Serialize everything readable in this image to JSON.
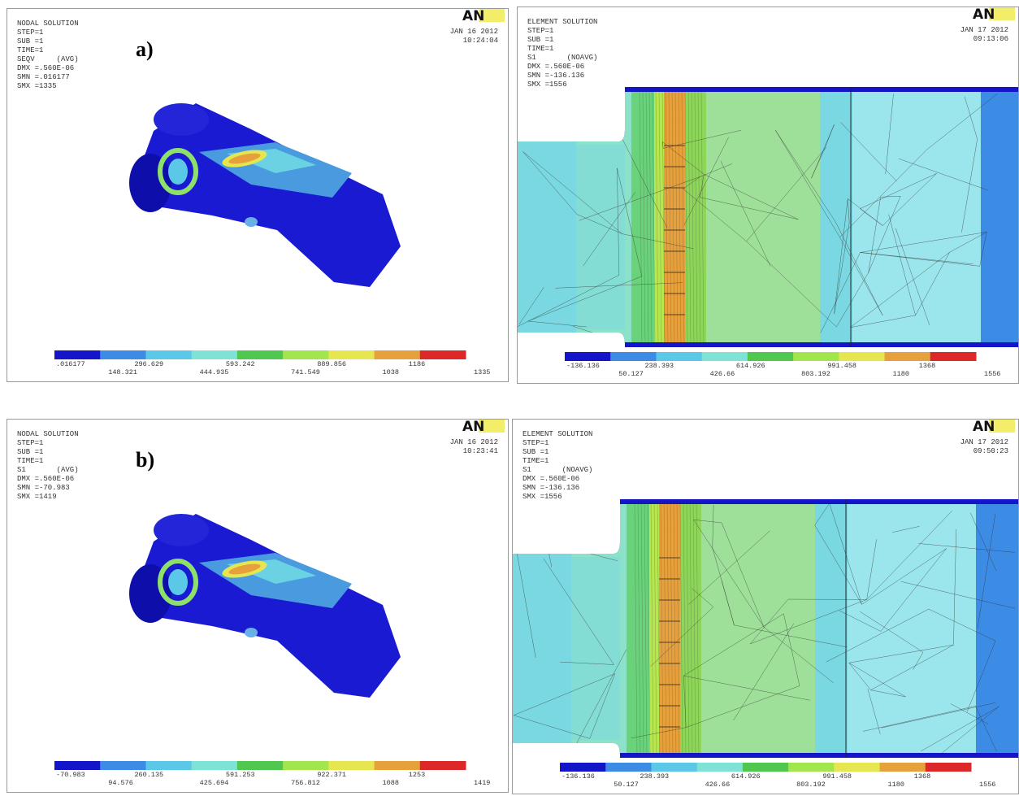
{
  "panels": [
    {
      "header": [
        "NODAL SOLUTION",
        "STEP=1",
        "SUB =1",
        "TIME=1",
        "SEQV     (AVG)",
        "DMX =.560E-06",
        "SMN =.016177",
        "SMX =1335"
      ],
      "label": "a)",
      "date": "JAN 16 2012",
      "time": "10:24:04",
      "logo": "AN",
      "legend_top": [
        ".016177",
        "296.629",
        "593.242",
        "889.856",
        "1186"
      ],
      "legend_bottom": [
        "148.321",
        "444.935",
        "741.549",
        "1038",
        "1335"
      ]
    },
    {
      "header": [
        "ELEMENT SOLUTION",
        "STEP=1",
        "SUB =1",
        "TIME=1",
        "S1       (NOAVG)",
        "DMX =.560E-06",
        "SMN =-136.136",
        "SMX =1556"
      ],
      "date": "JAN 17 2012",
      "time": "09:13:06",
      "logo": "AN",
      "legend_top": [
        "-136.136",
        "238.393",
        "614.926",
        "991.458",
        "1368"
      ],
      "legend_bottom": [
        "50.127",
        "426.66",
        "803.192",
        "1180",
        "1556"
      ]
    },
    {
      "header": [
        "NODAL SOLUTION",
        "STEP=1",
        "SUB =1",
        "TIME=1",
        "S1       (AVG)",
        "DMX =.560E-06",
        "SMN =-70.983",
        "SMX =1419"
      ],
      "label": "b)",
      "date": "JAN 16 2012",
      "time": "10:23:41",
      "logo": "AN",
      "legend_top": [
        "-70.983",
        "260.135",
        "591.253",
        "922.371",
        "1253"
      ],
      "legend_bottom": [
        "94.576",
        "425.694",
        "756.812",
        "1088",
        "1419"
      ]
    },
    {
      "header": [
        "ELEMENT SOLUTION",
        "STEP=1",
        "SUB =1",
        "TIME=1",
        "S1       (NOAVG)",
        "DMX =.560E-06",
        "SMN =-136.136",
        "SMX =1556"
      ],
      "date": "JAN 17 2012",
      "time": "09:50:23",
      "logo": "AN",
      "legend_top": [
        "-136.136",
        "238.393",
        "614.926",
        "991.458",
        "1368"
      ],
      "legend_bottom": [
        "50.127",
        "426.66",
        "803.192",
        "1180",
        "1556"
      ]
    }
  ]
}
